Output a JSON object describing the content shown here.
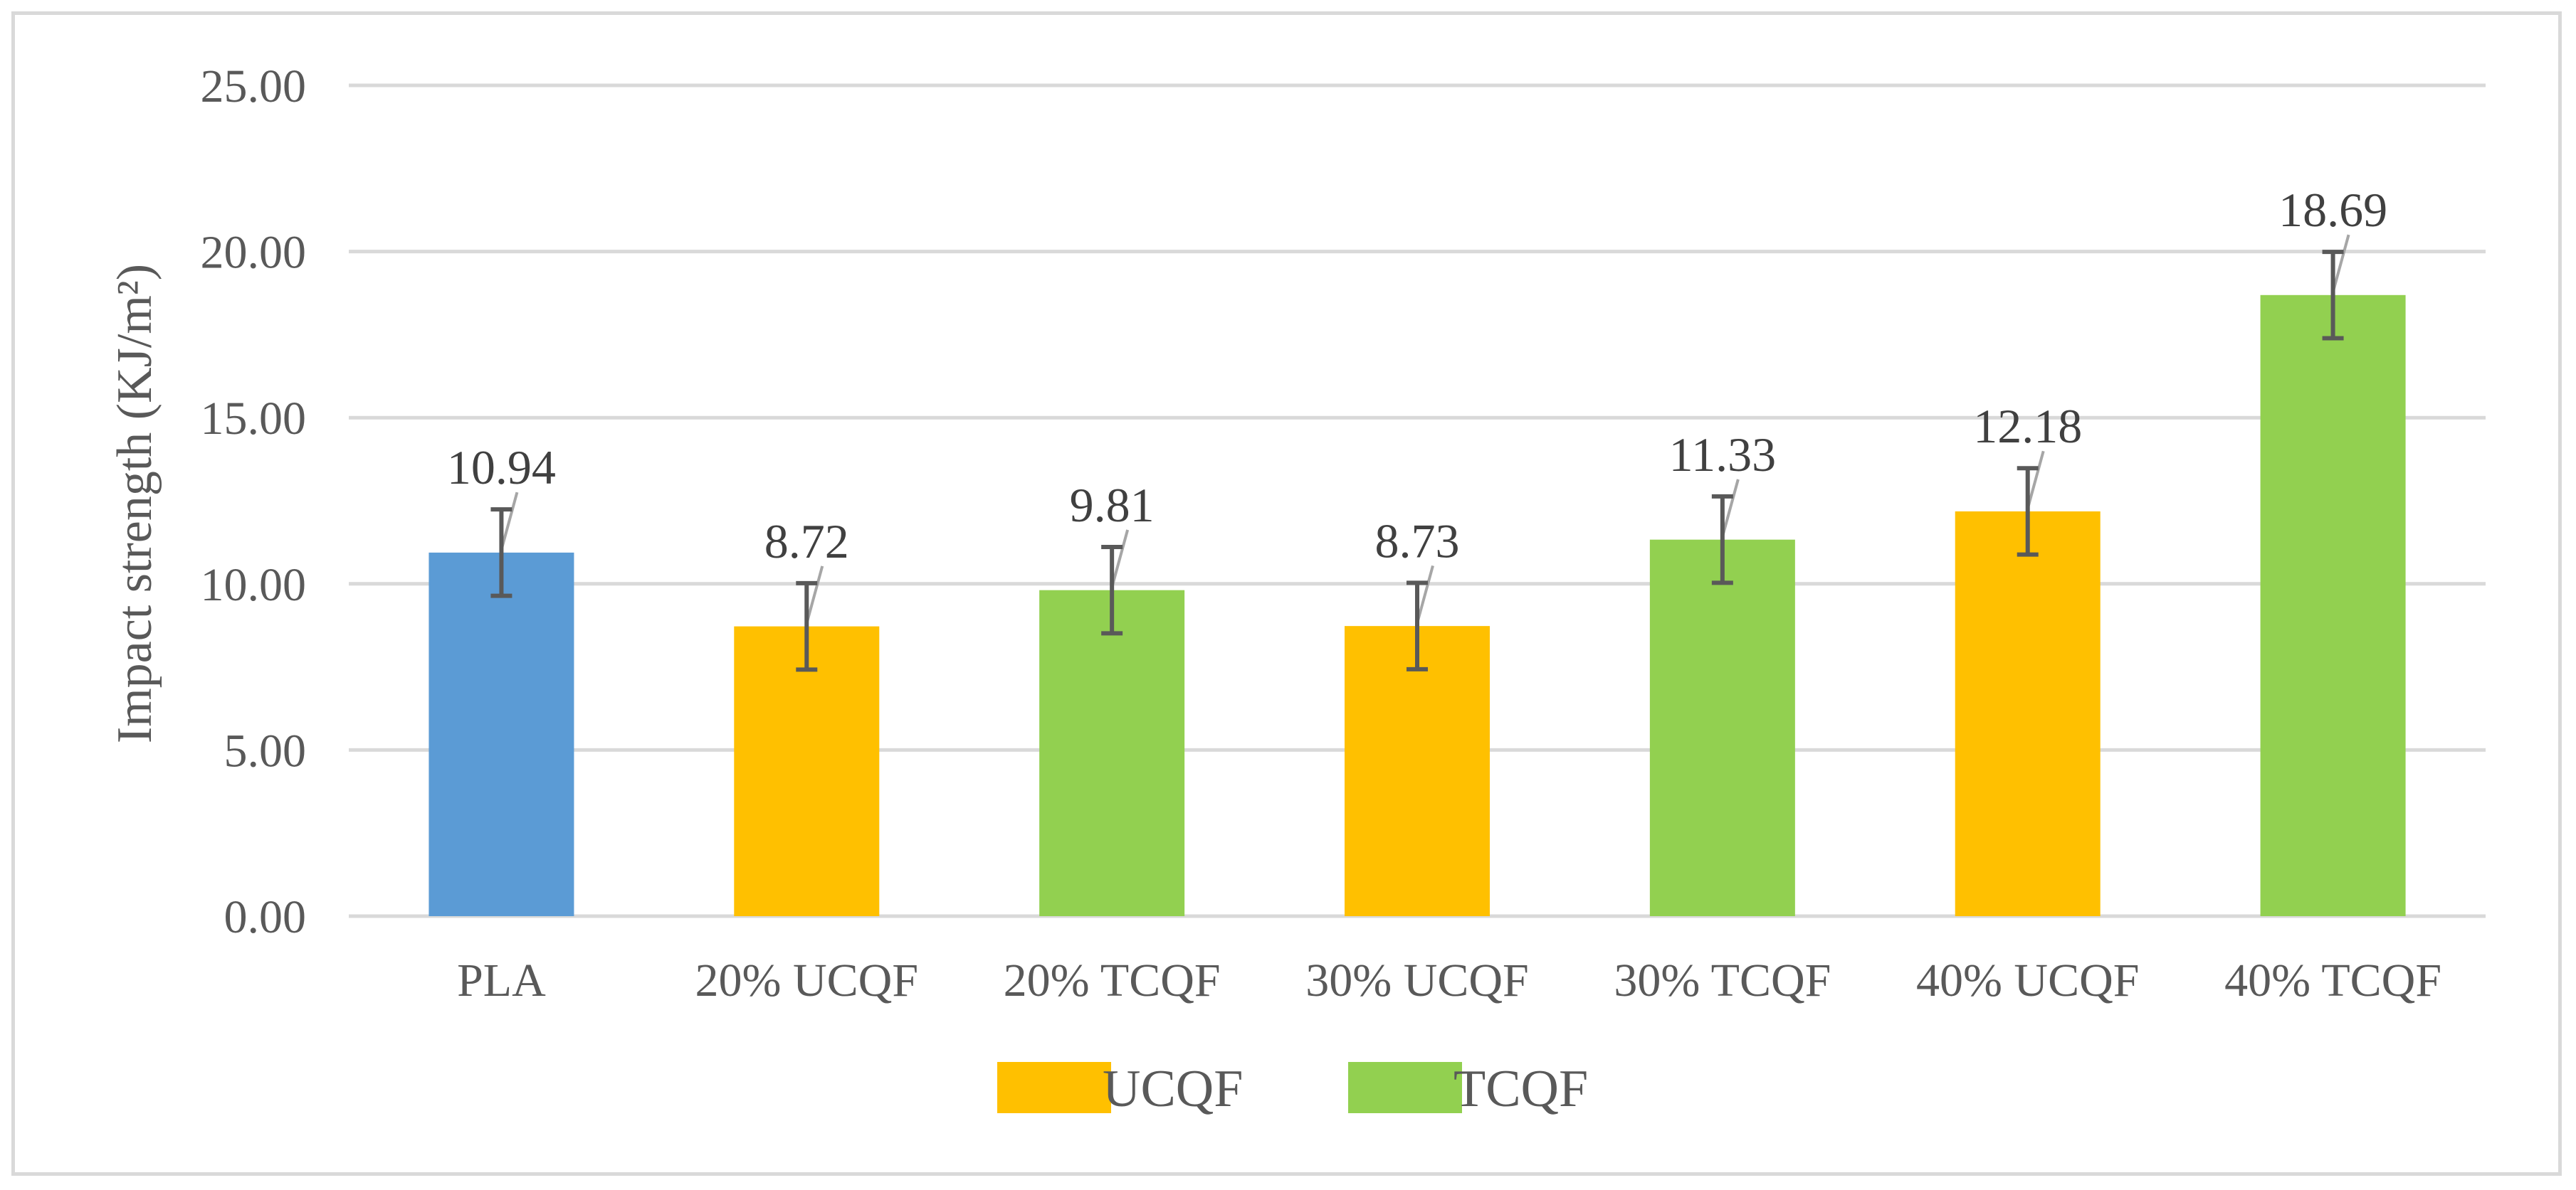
{
  "chart_data": {
    "type": "bar",
    "title": "",
    "xlabel": "",
    "ylabel": "Impact strength (KJ/m²)",
    "ylim": [
      0,
      25
    ],
    "yticks": [
      0,
      5,
      10,
      15,
      20,
      25
    ],
    "ytick_labels": [
      "0.00",
      "5.00",
      "10.00",
      "15.00",
      "20.00",
      "25.00"
    ],
    "grid": true,
    "categories": [
      "PLA",
      "20% UCQF",
      "20% TCQF",
      "30% UCQF",
      "30% TCQF",
      "40% UCQF",
      "40% TCQF"
    ],
    "values": [
      10.94,
      8.72,
      9.81,
      8.73,
      11.33,
      12.18,
      18.69
    ],
    "value_labels": [
      "10.94",
      "8.72",
      "9.81",
      "8.73",
      "11.33",
      "12.18",
      "18.69"
    ],
    "error": [
      1.3,
      1.3,
      1.3,
      1.3,
      1.3,
      1.3,
      1.3
    ],
    "group": [
      "PLA",
      "UCQF",
      "TCQF",
      "UCQF",
      "TCQF",
      "UCQF",
      "TCQF"
    ],
    "colors": {
      "PLA": "#5b9bd5",
      "UCQF": "#ffc000",
      "TCQF": "#92d050",
      "grid": "#d9d9d9",
      "error_bar": "#595959",
      "leader_line": "#a6a6a6"
    },
    "legend": {
      "position": "bottom",
      "entries": [
        {
          "name": "UCQF",
          "color": "#ffc000"
        },
        {
          "name": "TCQF",
          "color": "#92d050"
        }
      ]
    }
  }
}
